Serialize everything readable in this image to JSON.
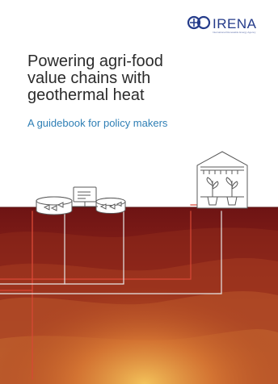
{
  "logo": {
    "brand": "IRENA",
    "tagline": "International Renewable Energy Agency",
    "icon": "irena-logo-icon",
    "color": "#243b8a"
  },
  "cover": {
    "title_lines": [
      "Powering agri-food",
      "value chains with",
      "geothermal heat"
    ],
    "subtitle": "A guidebook for policy makers",
    "title_color": "#2b2b2b",
    "subtitle_color": "#2f7fb5"
  },
  "illustration": {
    "icons": [
      "fish-tank-icon",
      "computer-monitor-icon",
      "greenhouse-icon",
      "plant-icon",
      "heat-pipe-icon"
    ],
    "colors": {
      "ground_dark": "#6e1414",
      "ground_mid": "#9a2c1c",
      "ground_light": "#c86b32",
      "glow": "#f0b048",
      "pipe_red": "#d94836",
      "pipe_white": "#e6e6e6"
    }
  }
}
